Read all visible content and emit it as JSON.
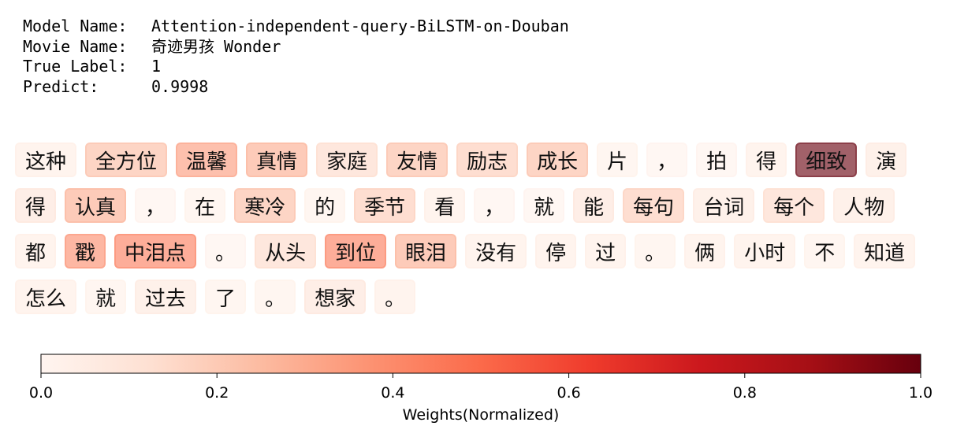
{
  "header": {
    "model_name_label": "Model Name:",
    "model_name": "Attention-independent-query-BiLSTM-on-Douban",
    "movie_name_label": "Movie Name:",
    "movie_name": "奇迹男孩 Wonder",
    "true_label_label": "True Label:",
    "true_label": 1,
    "predict_label": "Predict:",
    "predict": 0.9998
  },
  "tokens": [
    {
      "text": "这种",
      "weight": 0.05
    },
    {
      "text": "全方位",
      "weight": 0.25
    },
    {
      "text": "温馨",
      "weight": 0.35
    },
    {
      "text": "真情",
      "weight": 0.3
    },
    {
      "text": "家庭",
      "weight": 0.15
    },
    {
      "text": "友情",
      "weight": 0.25
    },
    {
      "text": "励志",
      "weight": 0.2
    },
    {
      "text": "成长",
      "weight": 0.25
    },
    {
      "text": "片",
      "weight": 0.03
    },
    {
      "text": "，",
      "weight": 0.02
    },
    {
      "text": "拍",
      "weight": 0.02
    },
    {
      "text": "得",
      "weight": 0.05
    },
    {
      "text": "细致",
      "weight": 1.0
    },
    {
      "text": "演",
      "weight": 0.08
    },
    {
      "text": "得",
      "weight": 0.1
    },
    {
      "text": "认真",
      "weight": 0.3
    },
    {
      "text": "，",
      "weight": 0.02
    },
    {
      "text": "在",
      "weight": 0.03
    },
    {
      "text": "寒冷",
      "weight": 0.25
    },
    {
      "text": "的",
      "weight": 0.03
    },
    {
      "text": "季节",
      "weight": 0.2
    },
    {
      "text": "看",
      "weight": 0.05
    },
    {
      "text": "，",
      "weight": 0.02
    },
    {
      "text": "就",
      "weight": 0.02
    },
    {
      "text": "能",
      "weight": 0.1
    },
    {
      "text": "每句",
      "weight": 0.2
    },
    {
      "text": "台词",
      "weight": 0.08
    },
    {
      "text": "每个",
      "weight": 0.15
    },
    {
      "text": "人物",
      "weight": 0.08
    },
    {
      "text": "都",
      "weight": 0.05
    },
    {
      "text": "戳",
      "weight": 0.4
    },
    {
      "text": "中泪点",
      "weight": 0.45
    },
    {
      "text": "。",
      "weight": 0.02
    },
    {
      "text": "从头",
      "weight": 0.15
    },
    {
      "text": "到位",
      "weight": 0.45
    },
    {
      "text": "眼泪",
      "weight": 0.3
    },
    {
      "text": "没有",
      "weight": 0.05
    },
    {
      "text": "停",
      "weight": 0.05
    },
    {
      "text": "过",
      "weight": 0.05
    },
    {
      "text": "。",
      "weight": 0.03
    },
    {
      "text": "俩",
      "weight": 0.05
    },
    {
      "text": "小时",
      "weight": 0.05
    },
    {
      "text": "不",
      "weight": 0.03
    },
    {
      "text": "知道",
      "weight": 0.05
    },
    {
      "text": "怎么",
      "weight": 0.05
    },
    {
      "text": "就",
      "weight": 0.03
    },
    {
      "text": "过去",
      "weight": 0.08
    },
    {
      "text": "了",
      "weight": 0.03
    },
    {
      "text": "。",
      "weight": 0.03
    },
    {
      "text": "想家",
      "weight": 0.1
    },
    {
      "text": "。",
      "weight": 0.05
    }
  ],
  "colorbar": {
    "label": "Weights(Normalized)",
    "lim": [
      0,
      1
    ],
    "ticks": [
      {
        "value": 0,
        "label": "0.0"
      },
      0.2,
      0.4,
      0.6,
      0.8,
      {
        "value": 1,
        "label": "1.0"
      }
    ]
  }
}
